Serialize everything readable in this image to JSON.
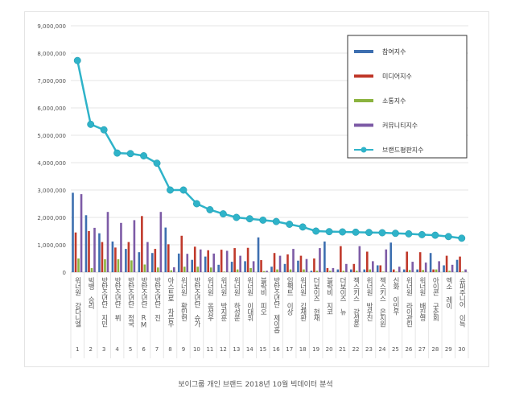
{
  "chart_data": {
    "type": "bar",
    "title": "",
    "caption": "보이그룹 개인 브랜드 2018년 10월 빅데이터 분석",
    "ylim": [
      0,
      9000000
    ],
    "yticks": [
      "0",
      "1,000,000",
      "2,000,000",
      "3,000,000",
      "4,000,000",
      "5,000,000",
      "6,000,000",
      "7,000,000",
      "8,000,000",
      "9,000,000"
    ],
    "grid": true,
    "legend_position": "top-right",
    "ranks": [
      "1",
      "2",
      "3",
      "4",
      "5",
      "6",
      "7",
      "8",
      "9",
      "10",
      "11",
      "12",
      "13",
      "14",
      "15",
      "16",
      "17",
      "18",
      "19",
      "20",
      "21",
      "22",
      "23",
      "24",
      "25",
      "26",
      "27",
      "28",
      "29",
      "30"
    ],
    "categories": [
      "워너원 강다니엘",
      "빅뱅 승리",
      "방탄소년단 지민",
      "방탄소년단 뷔",
      "방탄소년단 정국",
      "방탄소년단 RM",
      "방탄소년단 진",
      "아스트로 차은우",
      "워너원 황민현",
      "방탄소년단 슈가",
      "워너원 옹성우",
      "워너원 박지훈",
      "워너원 하성운",
      "워너원 이대휘",
      "블락비 피오",
      "방탄소년단 제이홉",
      "임팩트 이상",
      "워너원 김재환",
      "더보이즈 현재",
      "블락비 지코",
      "더보이즈 뉴",
      "젝스키스 강성훈",
      "워너원 박우진",
      "젝스키스 은지원",
      "신화 이민우",
      "워너원 라이관린",
      "워너원 배진영",
      "아이콘 구준회",
      "엑소 레이",
      "슈퍼주니어 이특"
    ],
    "series": [
      {
        "name": "참여지수",
        "type": "bar",
        "color": "#3d6fb0",
        "values": [
          2900000,
          2080000,
          1420000,
          1120000,
          850000,
          730000,
          700000,
          1630000,
          680000,
          450000,
          570000,
          270000,
          380000,
          400000,
          1270000,
          200000,
          300000,
          420000,
          50000,
          1120000,
          100000,
          100000,
          100000,
          250000,
          1080000,
          100000,
          100000,
          700000,
          250000,
          450000
        ]
      },
      {
        "name": "미디어지수",
        "type": "bar",
        "color": "#c0392b",
        "values": [
          1450000,
          1500000,
          1100000,
          900000,
          1100000,
          2050000,
          850000,
          1020000,
          1330000,
          930000,
          800000,
          820000,
          880000,
          890000,
          440000,
          700000,
          650000,
          600000,
          500000,
          150000,
          950000,
          300000,
          750000,
          250000,
          100000,
          750000,
          730000,
          100000,
          600000,
          570000
        ]
      },
      {
        "name": "소통지수",
        "type": "bar",
        "color": "#8bb33f",
        "values": [
          500000,
          150000,
          470000,
          470000,
          430000,
          280000,
          170000,
          70000,
          200000,
          200000,
          170000,
          20000,
          100000,
          150000,
          40000,
          100000,
          100000,
          100000,
          50000,
          50000,
          50000,
          50000,
          100000,
          20000,
          20000,
          80000,
          80000,
          100000,
          50000,
          20000
        ]
      },
      {
        "name": "커뮤니티지수",
        "type": "bar",
        "color": "#7d5ba6",
        "values": [
          2850000,
          1620000,
          2200000,
          1800000,
          1900000,
          1100000,
          2200000,
          180000,
          670000,
          830000,
          680000,
          780000,
          600000,
          400000,
          50000,
          600000,
          850000,
          480000,
          880000,
          150000,
          300000,
          950000,
          400000,
          830000,
          200000,
          380000,
          350000,
          400000,
          270000,
          100000
        ]
      },
      {
        "name": "브랜드평판지수",
        "type": "line",
        "color": "#2fb3c9",
        "values": [
          7730000,
          5400000,
          5200000,
          4350000,
          4330000,
          4250000,
          3980000,
          3000000,
          3000000,
          2500000,
          2280000,
          2130000,
          2000000,
          1950000,
          1900000,
          1850000,
          1750000,
          1650000,
          1500000,
          1480000,
          1470000,
          1460000,
          1450000,
          1440000,
          1420000,
          1400000,
          1370000,
          1350000,
          1300000,
          1240000
        ]
      }
    ]
  }
}
